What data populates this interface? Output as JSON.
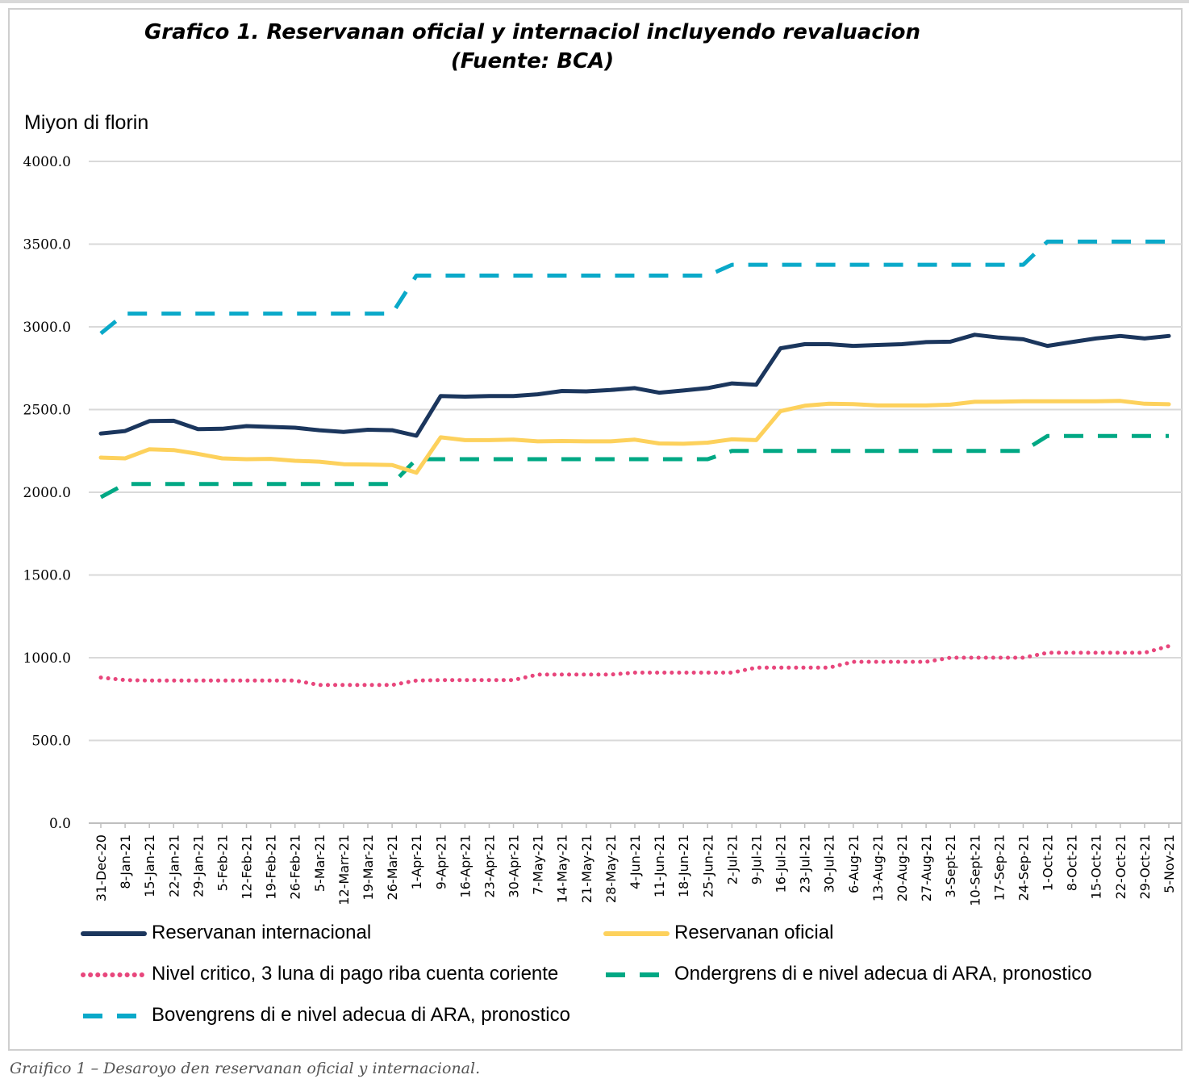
{
  "title_line1": "Grafico 1. Reservanan oficial y internaciol incluyendo revaluacion",
  "title_line2": "(Fuente: BCA)",
  "caption": "Graifico 1 – Desaroyo den reservanan oficial y internacional.",
  "chart_data": {
    "type": "line",
    "title": "Grafico 1. Reservanan oficial y internaciol incluyendo revaluacion (Fuente: BCA)",
    "ylabel": "Miyon di florin",
    "ylim": [
      0,
      4000
    ],
    "yticks": [
      "0.0",
      "500.0",
      "1000.0",
      "1500.0",
      "2000.0",
      "2500.0",
      "3000.0",
      "3500.0",
      "4000.0"
    ],
    "grid": true,
    "legend_position": "bottom",
    "categories": [
      "31-Dec-20",
      "8-Jan-21",
      "15-Jan-21",
      "22-Jan-21",
      "29-Jan-21",
      "5-Feb-21",
      "12-Feb-21",
      "19-Feb-21",
      "26-Feb-21",
      "5-Mar-21",
      "12-Marr-21",
      "19-Mar-21",
      "26-Mar-21",
      "1-Apr-21",
      "9-Apr-21",
      "16-Apr-21",
      "23-Apr-21",
      "30-Apr-21",
      "7-May-21",
      "14-May-21",
      "21-May-21",
      "28-May-21",
      "4-Jun-21",
      "11-Jun-21",
      "18-Jun-21",
      "25-Jun-21",
      "2-Jul-21",
      "9-Jul-21",
      "16-Jul-21",
      "23-Jul-21",
      "30-Jul-21",
      "6-Aug-21",
      "13-Aug-21",
      "20-Aug-21",
      "27-Aug-21",
      "3-Sept-21",
      "10-Sept-21",
      "17-Sep-21",
      "24-Sep-21",
      "1-Oct-21",
      "8-Oct-21",
      "15-Oct-21",
      "22-Oct-21",
      "29-Oct-21",
      "5-Nov-21"
    ],
    "series": [
      {
        "name": "Reservanan internacional",
        "color": "#1b365d",
        "style": "solid",
        "values": [
          2355,
          2370,
          2430,
          2432,
          2382,
          2384,
          2400,
          2395,
          2390,
          2375,
          2365,
          2378,
          2375,
          2342,
          2582,
          2578,
          2582,
          2582,
          2592,
          2612,
          2610,
          2618,
          2630,
          2602,
          2615,
          2630,
          2658,
          2650,
          2870,
          2895,
          2895,
          2885,
          2890,
          2895,
          2908,
          2910,
          2952,
          2935,
          2925,
          2885,
          2908,
          2930,
          2945,
          2930,
          2945
        ]
      },
      {
        "name": "Reservanan oficial",
        "color": "#fdd15c",
        "style": "solid",
        "values": [
          2210,
          2205,
          2260,
          2255,
          2232,
          2205,
          2200,
          2202,
          2190,
          2185,
          2170,
          2168,
          2165,
          2118,
          2332,
          2315,
          2315,
          2318,
          2308,
          2310,
          2308,
          2308,
          2318,
          2295,
          2293,
          2300,
          2320,
          2315,
          2490,
          2523,
          2535,
          2533,
          2525,
          2525,
          2525,
          2530,
          2547,
          2548,
          2550,
          2550,
          2550,
          2550,
          2552,
          2535,
          2532
        ]
      },
      {
        "name": "Nivel critico, 3 luna di pago riba cuenta coriente",
        "color": "#e8467c",
        "style": "dotted",
        "values": [
          880,
          865,
          862,
          862,
          862,
          862,
          862,
          862,
          862,
          835,
          835,
          835,
          835,
          862,
          865,
          865,
          865,
          865,
          898,
          898,
          898,
          898,
          910,
          910,
          910,
          910,
          910,
          940,
          940,
          940,
          940,
          975,
          975,
          975,
          975,
          1000,
          1000,
          1000,
          1000,
          1030,
          1030,
          1030,
          1030,
          1030,
          1070
        ]
      },
      {
        "name": "Ondergrens di e nivel adecua di ARA, pronostico",
        "color": "#00a884",
        "style": "dashed",
        "values": [
          1970,
          2050,
          2050,
          2050,
          2050,
          2050,
          2050,
          2050,
          2050,
          2050,
          2050,
          2050,
          2050,
          2200,
          2200,
          2200,
          2200,
          2200,
          2200,
          2200,
          2200,
          2200,
          2200,
          2200,
          2200,
          2200,
          2250,
          2250,
          2250,
          2250,
          2250,
          2250,
          2250,
          2250,
          2250,
          2250,
          2250,
          2250,
          2250,
          2340,
          2340,
          2340,
          2340,
          2340,
          2340
        ]
      },
      {
        "name": "Bovengrens di e nivel adecua di ARA, pronostico",
        "color": "#0aa9c9",
        "style": "dashed",
        "values": [
          2960,
          3080,
          3080,
          3080,
          3080,
          3080,
          3080,
          3080,
          3080,
          3080,
          3080,
          3080,
          3080,
          3310,
          3310,
          3310,
          3310,
          3310,
          3310,
          3310,
          3310,
          3310,
          3310,
          3310,
          3310,
          3310,
          3375,
          3375,
          3375,
          3375,
          3375,
          3375,
          3375,
          3375,
          3375,
          3375,
          3375,
          3375,
          3375,
          3515,
          3515,
          3515,
          3515,
          3515,
          3515
        ]
      }
    ]
  }
}
